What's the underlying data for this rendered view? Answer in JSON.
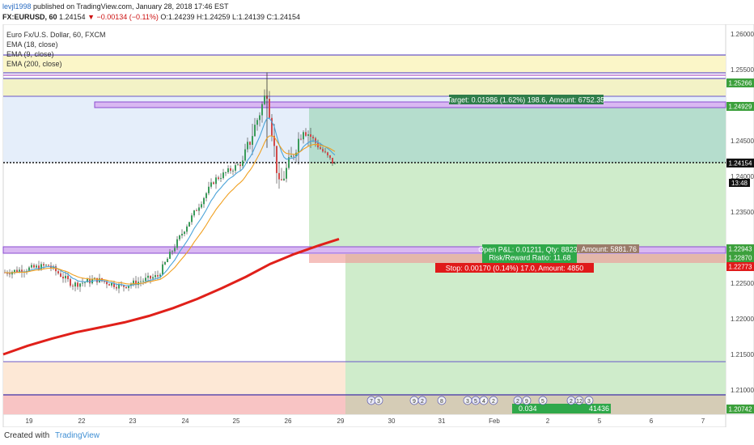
{
  "header": {
    "user": "levjl1998",
    "published": "published on TradingView.com, January 28, 2018 17:46 EST",
    "symbol": "FX:EURUSD, 60",
    "price": "1.24154",
    "change": "▼ −0.00134 (−0.11%)",
    "ohlc": "O:1.24239 H:1.24259 L:1.24139 C:1.24154"
  },
  "legend": {
    "title": "Euro Fx/U.S. Dollar, 60, FXCM",
    "ema18": "EMA (18, close)",
    "ema9": "EMA (9, close)",
    "ema200": "EMA (200, close)"
  },
  "footer": {
    "created": "Created with",
    "brand": "TradingView"
  },
  "colors": {
    "up": "#3a9b5a",
    "down": "#d14a4a",
    "ema200": "#e0201a",
    "ema18": "#f0a020",
    "ema9": "#4aa3d8",
    "target": "#2e9a4e",
    "stop": "#e01a1a"
  },
  "positions": {
    "target": "Target: 0.01986 (1.62%) 198.6, Amount: 6752.35",
    "pnl": "Open P&L: 0.01211, Qty: 88235",
    "rr": "Risk/Reward Ratio: 11.68",
    "amount2": ", Amount: 5881.76",
    "stop": "Stop: 0.00170 (0.14%) 17.0, Amount: 4850",
    "bottom": "41436",
    "bottom_left": "0.034"
  },
  "price_badges": {
    "p1": "1.25266",
    "p2": "1.24929",
    "p3": "1.24154",
    "p3_time": "13:48",
    "p4": "1.22943",
    "p5": "1.22870",
    "p6": "1.22773",
    "p7": "1.20742"
  },
  "events": [
    "7",
    "3",
    "9",
    "2",
    "8",
    "3",
    "5",
    "4",
    "2",
    "2",
    "9",
    "5",
    "2",
    "12",
    "3"
  ],
  "chart_data": {
    "type": "line",
    "title": "Euro Fx/U.S. Dollar, 60, FXCM",
    "x_ticks": [
      "19",
      "22",
      "23",
      "24",
      "25",
      "26",
      "29",
      "30",
      "31",
      "Feb",
      "2",
      "5",
      "6",
      "7"
    ],
    "y_ticks": [
      "1.26000",
      "1.25500",
      "1.25000",
      "1.24500",
      "1.24000",
      "1.23500",
      "1.23000",
      "1.22500",
      "1.22000",
      "1.21500",
      "1.21000"
    ],
    "ylim": [
      1.2068,
      1.2617
    ],
    "current_price": 1.24154,
    "levels": [
      1.25266,
      1.24929,
      1.22943,
      1.2287,
      1.22773,
      1.20742
    ],
    "series": [
      {
        "name": "EMA (200, close)",
        "x": [
          0,
          30,
          60,
          90,
          120,
          150,
          180,
          210,
          240,
          270,
          300,
          330,
          360,
          390,
          415
        ],
        "values": [
          1.215,
          1.2162,
          1.2172,
          1.2181,
          1.2188,
          1.2195,
          1.2204,
          1.2215,
          1.2228,
          1.2243,
          1.2259,
          1.2277,
          1.2291,
          1.2303,
          1.2312
        ]
      }
    ]
  }
}
